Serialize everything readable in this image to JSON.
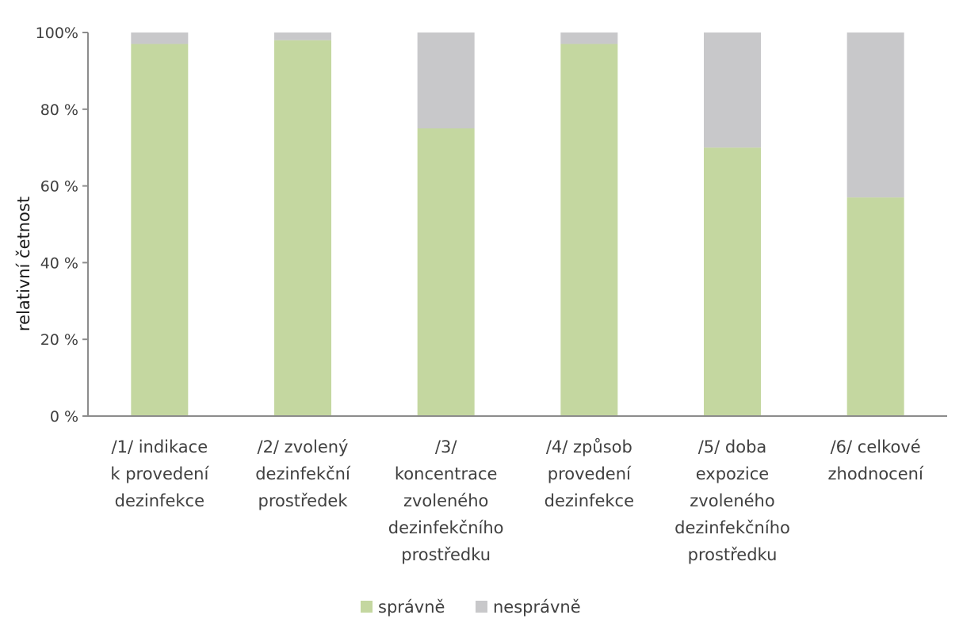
{
  "chart_data": {
    "type": "bar",
    "stacked": true,
    "title": "",
    "xlabel": "",
    "ylabel": "relativní četnost",
    "ylim": [
      0,
      100
    ],
    "yticks": [
      0,
      20,
      40,
      60,
      80,
      100
    ],
    "ytick_labels": [
      "0 %",
      "20 %",
      "40 %",
      "60 %",
      "80 %",
      "100%"
    ],
    "categories": [
      [
        "/1/ indikace",
        "k provedení",
        "dezinfekce"
      ],
      [
        "/2/ zvolený",
        "dezinfekční",
        "prostředek"
      ],
      [
        "/3/",
        "koncentrace",
        "zvoleného",
        "dezinfekčního",
        "prostředku"
      ],
      [
        "/4/ způsob",
        "provedení",
        "dezinfekce"
      ],
      [
        "/5/ doba",
        "expozice",
        "zvoleného",
        "dezinfekčního",
        "prostředku"
      ],
      [
        "/6/ celkové",
        "zhodnocení"
      ]
    ],
    "series": [
      {
        "name": "správně",
        "color": "#c4d7a0",
        "values": [
          97,
          98,
          75,
          97,
          70,
          57
        ]
      },
      {
        "name": "nesprávně",
        "color": "#c8c8ca",
        "values": [
          3,
          2,
          25,
          3,
          30,
          43
        ]
      }
    ],
    "grid": false,
    "legend_position": "bottom"
  }
}
